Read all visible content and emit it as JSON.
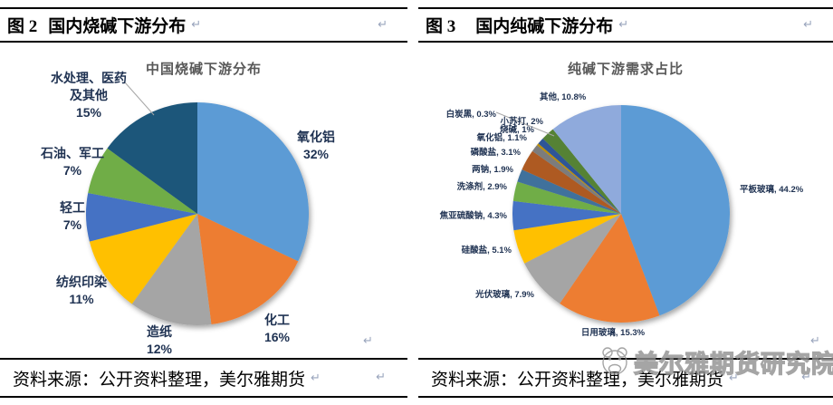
{
  "style": {
    "label_color": "#1F3252",
    "chart_title_color": "#595959",
    "rule_color": "#000000",
    "watermark_color": "#8F8F8F",
    "paragraph_mark_color": "#9AA5BD"
  },
  "paragraph_mark": "↵",
  "panels": [
    {
      "figure_label": "图 2",
      "figure_title": "国内烧碱下游分布",
      "source": "资料来源：公开资料整理，美尔雅期货"
    },
    {
      "figure_label": "图 3",
      "figure_title": "国内纯碱下游分布",
      "source": "资料来源：公开资料整理，美尔雅期货"
    }
  ],
  "watermark": {
    "text": "美尔雅期货研究院"
  },
  "chart_data": [
    {
      "type": "pie",
      "title": "中国烧碱下游分布",
      "legend": "none",
      "label_position": "outside",
      "direction": "clockwise",
      "start_angle": "12-oclock",
      "unit": "%",
      "categories": [
        "氧化铝",
        "化工",
        "造纸",
        "纺织印染",
        "轻工",
        "石油、军工",
        "水处理、医药及其他"
      ],
      "values": [
        32,
        16,
        12,
        11,
        7,
        7,
        15
      ],
      "colors": [
        "#5B9BD5",
        "#ED7D31",
        "#A5A5A5",
        "#FFC000",
        "#4472C4",
        "#70AD47",
        "#1F567A"
      ],
      "display_labels": [
        [
          "氧化铝",
          "32%"
        ],
        [
          "化工",
          "16%"
        ],
        [
          "造纸",
          "12%"
        ],
        [
          "纺织印染",
          "11%"
        ],
        [
          "轻工",
          "7%"
        ],
        [
          "石油、军工",
          "7%"
        ],
        [
          "水处理、医药",
          "及其他",
          "15%"
        ]
      ]
    },
    {
      "type": "pie",
      "title": "纯碱下游需求占比",
      "legend": "none",
      "label_position": "outside",
      "direction": "clockwise",
      "start_angle": "12-oclock",
      "unit": "%",
      "categories": [
        "平板玻璃",
        "日用玻璃",
        "光伏玻璃",
        "硅酸盐",
        "焦亚硫酸钠",
        "洗涤剂",
        "两钠",
        "磷酸盐",
        "氧化铝",
        "白炭黑",
        "烧碱",
        "小苏打",
        "其他"
      ],
      "values": [
        44.2,
        15.3,
        7.9,
        5.1,
        4.3,
        2.9,
        1.9,
        3.1,
        1.1,
        0.3,
        1,
        2,
        10.8
      ],
      "colors": [
        "#5B9BD5",
        "#ED7D31",
        "#A5A5A5",
        "#FFC000",
        "#4472C4",
        "#70AD47",
        "#41719C",
        "#AE5A21",
        "#7B7B7B",
        "#BF8F00",
        "#2F5597",
        "#548235",
        "#8FAADC"
      ],
      "display_labels": [
        [
          "平板玻璃, 44.2%"
        ],
        [
          "日用玻璃, 15.3%"
        ],
        [
          "光伏玻璃, 7.9%"
        ],
        [
          "硅酸盐, 5.1%"
        ],
        [
          "焦亚硫酸钠, 4.3%"
        ],
        [
          "洗涤剂, 2.9%"
        ],
        [
          "两钠, 1.9%"
        ],
        [
          "磷酸盐, 3.1%"
        ],
        [
          "氧化铝, 1.1%"
        ],
        [
          "白炭黑, 0.3%"
        ],
        [
          "烧碱, 1%"
        ],
        [
          "小苏打, 2%"
        ],
        [
          "其他, 10.8%"
        ]
      ]
    }
  ]
}
